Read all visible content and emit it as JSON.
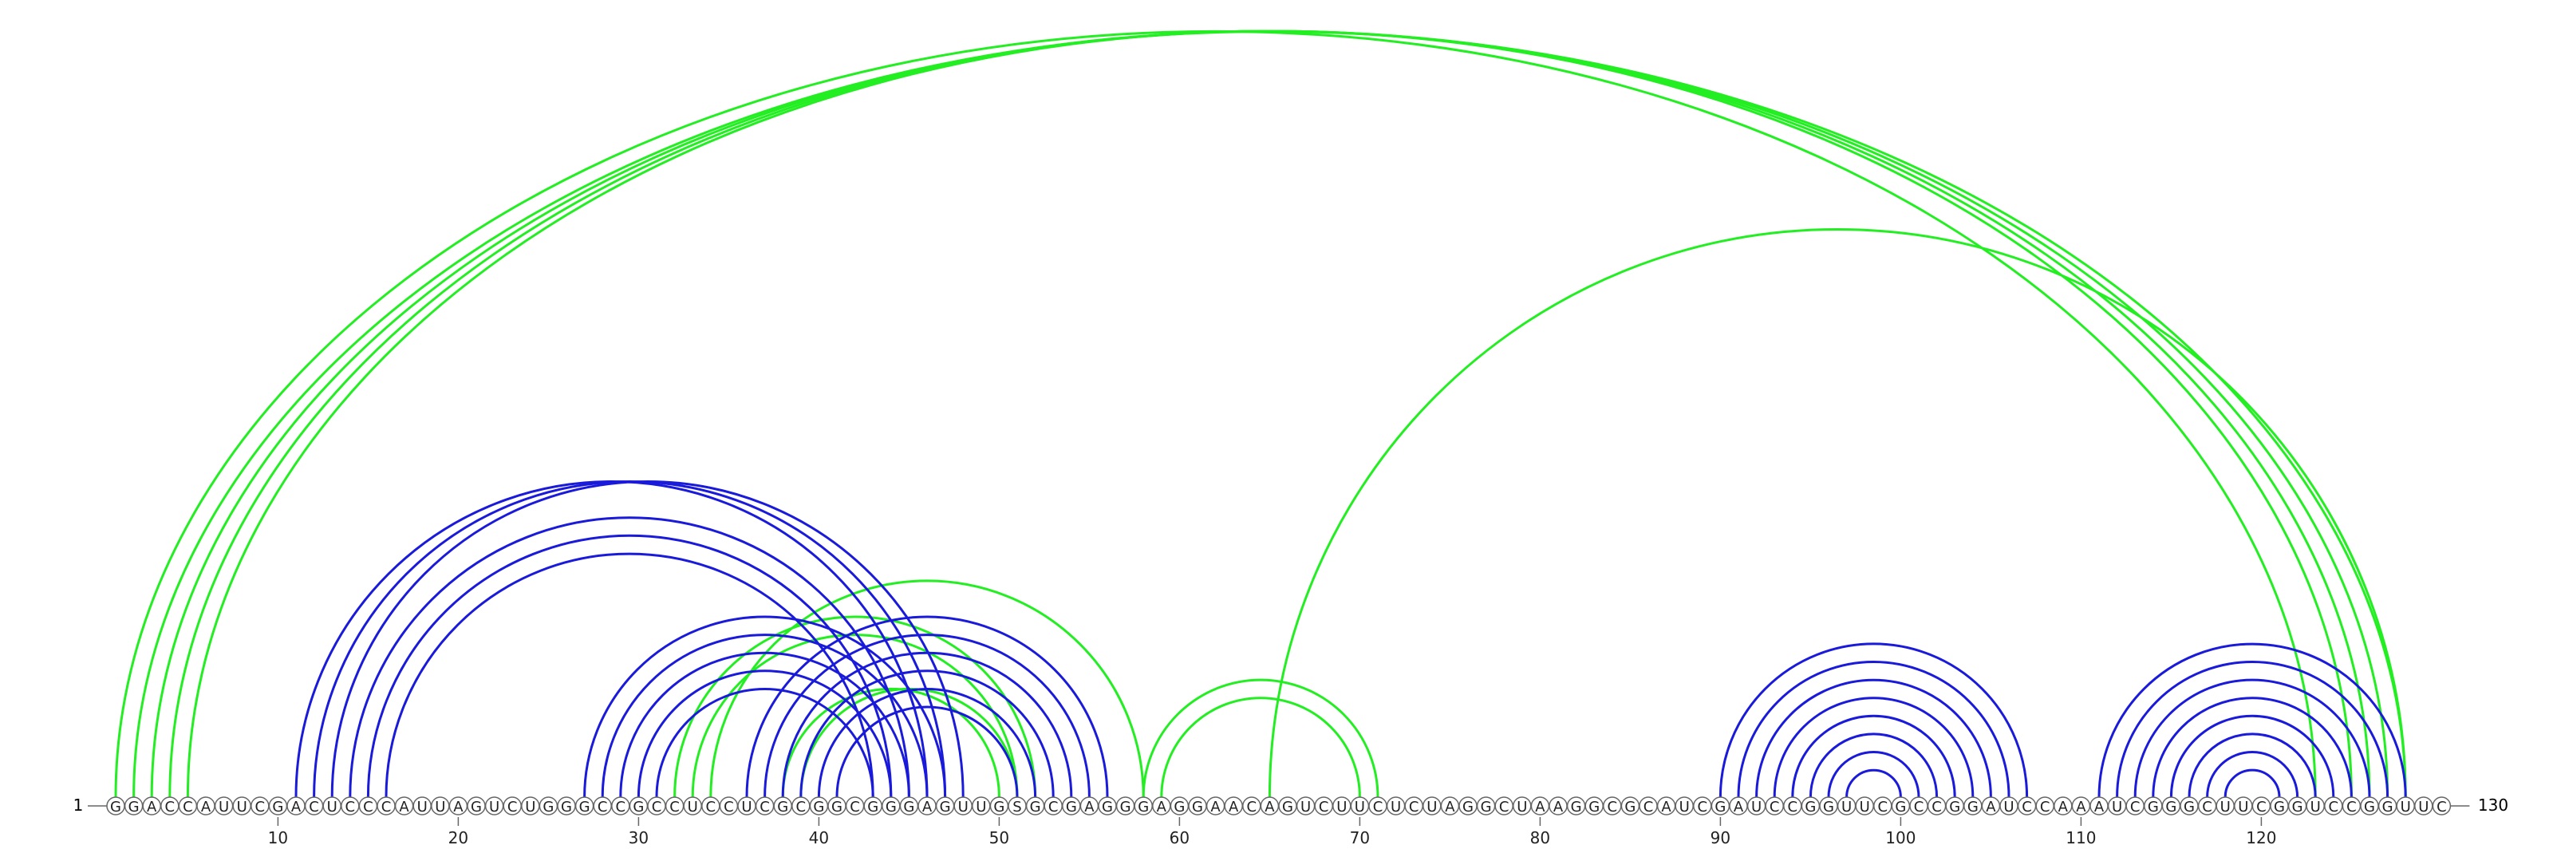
{
  "sequence": "GGACCAUUCGACUCCCAUUAGUCUGGGCCGCCUCCUCGCGGCGGGAGUUGSGCGAGGGAGGAACAGUCUUCUCUAGGCUAAGGCGCAUCGAUCCGGUUCGCCGGAUCCAAAUCGGGCUUCGGUCCGGUUC",
  "start_label": "1",
  "end_label": "130",
  "ticks": [
    10,
    20,
    30,
    40,
    50,
    60,
    70,
    80,
    90,
    100,
    110,
    120
  ],
  "colors": {
    "green": "#22ee22",
    "blue": "#1a1adb",
    "circle_stroke": "#666666",
    "text": "#222222"
  },
  "arcs_green": [
    [
      1,
      123
    ],
    [
      2,
      128
    ],
    [
      3,
      127
    ],
    [
      4,
      126
    ],
    [
      5,
      125
    ],
    [
      32,
      52
    ],
    [
      33,
      51
    ],
    [
      34,
      58
    ],
    [
      39,
      51
    ],
    [
      38,
      50
    ],
    [
      58,
      71
    ],
    [
      59,
      70
    ],
    [
      65,
      128
    ]
  ],
  "arcs_blue": [
    [
      11,
      46
    ],
    [
      12,
      47
    ],
    [
      13,
      48
    ],
    [
      14,
      45
    ],
    [
      15,
      44
    ],
    [
      16,
      43
    ],
    [
      27,
      47
    ],
    [
      28,
      46
    ],
    [
      29,
      45
    ],
    [
      30,
      44
    ],
    [
      31,
      43
    ],
    [
      36,
      56
    ],
    [
      37,
      55
    ],
    [
      38,
      54
    ],
    [
      39,
      53
    ],
    [
      40,
      52
    ],
    [
      41,
      51
    ],
    [
      90,
      107
    ],
    [
      91,
      106
    ],
    [
      92,
      105
    ],
    [
      93,
      104
    ],
    [
      94,
      103
    ],
    [
      95,
      102
    ],
    [
      96,
      101
    ],
    [
      97,
      100
    ],
    [
      111,
      128
    ],
    [
      112,
      127
    ],
    [
      113,
      126
    ],
    [
      114,
      125
    ],
    [
      115,
      124
    ],
    [
      116,
      123
    ],
    [
      117,
      122
    ],
    [
      118,
      121
    ]
  ]
}
